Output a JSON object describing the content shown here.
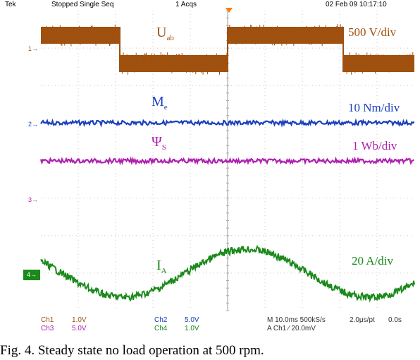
{
  "header": {
    "brand": "Tek",
    "state": "Stopped  Single Seq",
    "acqs": "1 Acqs",
    "datetime": "02 Feb 09 10:17:10"
  },
  "labels": {
    "uab_main": "U",
    "uab_sub": "ab",
    "uab_scale": "500 V/div",
    "me_main": "M",
    "me_sub": "e",
    "me_scale": "10 Nm/div",
    "psi_main": "Ψ",
    "psi_sub": "S",
    "psi_scale": "1 Wb/div",
    "ia_main": "I",
    "ia_sub": "A",
    "ia_scale": "20 A/div"
  },
  "channel_markers": {
    "ch1": "1",
    "ch2": "2",
    "ch3": "3",
    "ch4": "4"
  },
  "footer": {
    "ch1": "Ch1",
    "ch1_val": "1.0V",
    "ch3": "Ch3",
    "ch3_val": "5.0V",
    "ch2": "Ch2",
    "ch2_val": "5.0V",
    "ch4": "Ch4",
    "ch4_val": "1.0V",
    "timebase": "M 10.0ms 500kS/s",
    "trigger": "A  Ch1  ⁄  20.0mV",
    "per_pt": "2.0μs/pt",
    "offset": "0.0s"
  },
  "caption": "Fig. 4. Steady state no load operation at 500 rpm.",
  "colors": {
    "ch1": "#a0500f",
    "ch2": "#1a3fbf",
    "ch3": "#b020b0",
    "ch4": "#1a8a1a",
    "grid": "#c8c8c8",
    "trigger": "#ff7a00"
  },
  "chart_data": {
    "type": "line",
    "series": [
      {
        "name": "Uab",
        "shape": "square wave",
        "levels": [
          "high",
          "low",
          "high",
          "low"
        ]
      },
      {
        "name": "Me",
        "shape": "flat"
      },
      {
        "name": "ΨS",
        "shape": "flat"
      },
      {
        "name": "IA",
        "shape": "sinusoid"
      }
    ]
  }
}
